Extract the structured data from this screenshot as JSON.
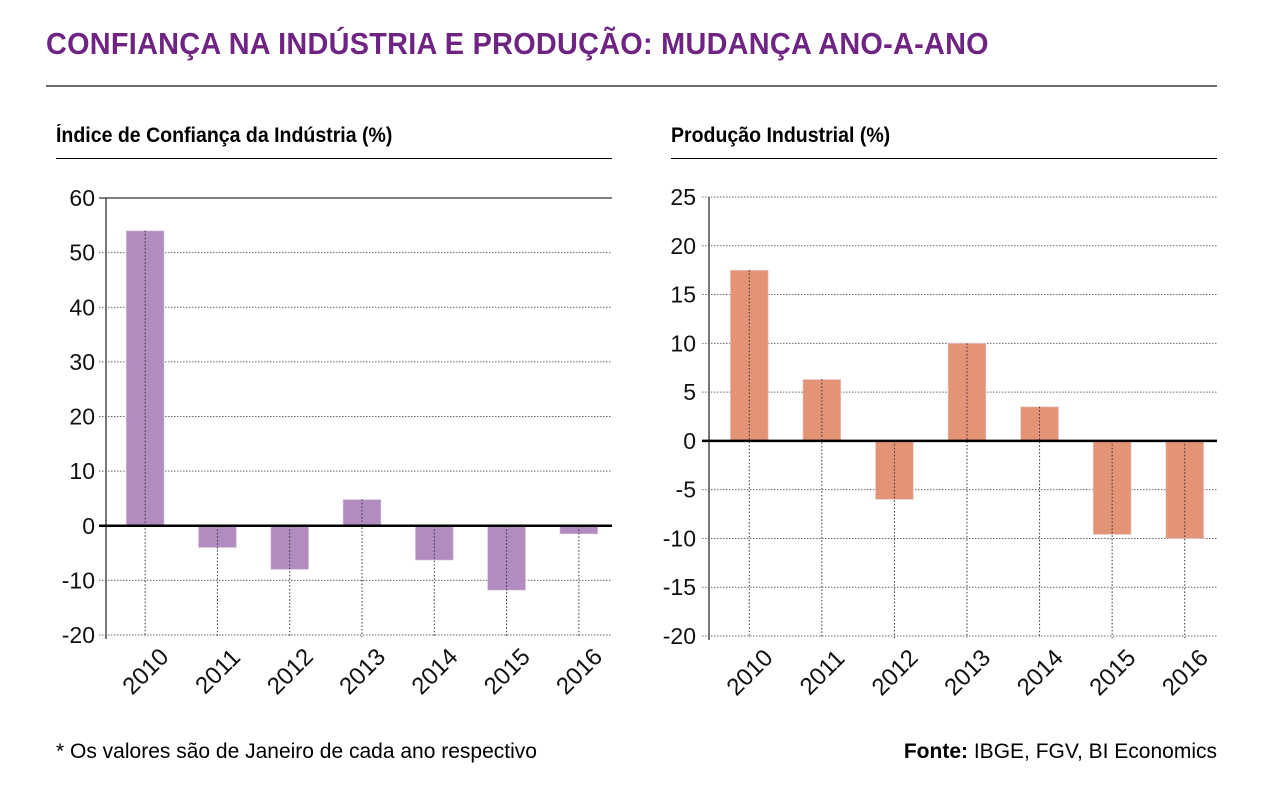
{
  "header": {
    "title": "CONFIANÇA NA INDÚSTRIA E PRODUÇÃO: MUDANÇA ANO-A-ANO",
    "title_color": "#6f2383"
  },
  "footer": {
    "footnote": "* Os valores são de Janeiro de cada ano respectivo",
    "source_label": "Fonte:",
    "source_text": " IBGE, FGV, BI Economics"
  },
  "chart_data": [
    {
      "type": "bar",
      "title": "Índice de Confiança da Indústria (%)",
      "xlabel": "",
      "ylabel": "",
      "categories": [
        "2010",
        "2011",
        "2012",
        "2013",
        "2014",
        "2015",
        "2016"
      ],
      "values": [
        54,
        -4,
        -8,
        4.8,
        -6.3,
        -11.8,
        -1.5
      ],
      "ylim": [
        -20,
        60
      ],
      "yticks": [
        60,
        50,
        40,
        30,
        20,
        10,
        0,
        -10,
        -20
      ],
      "grid": true,
      "bar_color": "#b08cc0",
      "legend": "none"
    },
    {
      "type": "bar",
      "title": "Produção Industrial (%)",
      "xlabel": "",
      "ylabel": "",
      "categories": [
        "2010",
        "2011",
        "2012",
        "2013",
        "2014",
        "2015",
        "2016"
      ],
      "values": [
        17.5,
        6.3,
        -6.0,
        10.0,
        3.5,
        -9.6,
        -10.0
      ],
      "ylim": [
        -20,
        25
      ],
      "yticks": [
        25,
        20,
        15,
        10,
        5,
        0,
        -5,
        -10,
        -15,
        -20
      ],
      "grid": true,
      "bar_color": "#e49476",
      "legend": "none"
    }
  ]
}
